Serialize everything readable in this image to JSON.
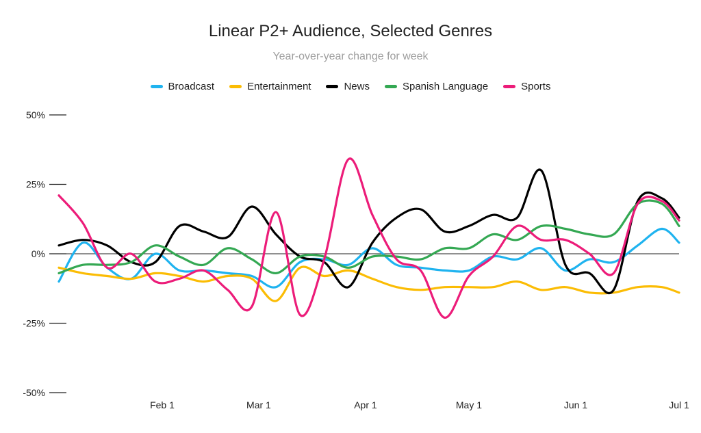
{
  "chart_data": {
    "type": "line",
    "title": "Linear P2+ Audience, Selected Genres",
    "subtitle": "Year-over-year change for week",
    "xlabel": "",
    "ylabel": "",
    "ylim": [
      -50,
      50
    ],
    "y_ticks": [
      50,
      25,
      0,
      -25,
      -50
    ],
    "y_tick_labels": [
      "50%",
      "25%",
      "0%",
      "-25%",
      "-50%"
    ],
    "x_ticks": [
      {
        "label": "Feb 1",
        "x": 31
      },
      {
        "label": "Mar 1",
        "x": 59
      },
      {
        "label": "Apr 1",
        "x": 90
      },
      {
        "label": "May 1",
        "x": 120
      },
      {
        "label": "Jun 1",
        "x": 151
      },
      {
        "label": "Jul 1",
        "x": 181
      }
    ],
    "xlim": [
      1,
      181
    ],
    "x_unit": "day of year (2021)",
    "legend_position": "top-center",
    "zero_line": true,
    "series": [
      {
        "name": "Broadcast",
        "color": "#1fb3ef",
        "x": [
          1,
          8,
          15,
          22,
          29,
          36,
          43,
          50,
          57,
          64,
          71,
          78,
          85,
          92,
          99,
          106,
          113,
          120,
          127,
          134,
          141,
          148,
          155,
          162,
          169,
          176,
          181
        ],
        "y": [
          -10,
          4,
          -5,
          -9,
          0,
          -6,
          -6,
          -7,
          -8,
          -12,
          -3,
          -2,
          -4,
          2,
          -4,
          -5,
          -6,
          -6,
          -1,
          -2,
          2,
          -6,
          -2,
          -3,
          3,
          9,
          4
        ]
      },
      {
        "name": "Entertainment",
        "color": "#fbbc04",
        "x": [
          1,
          8,
          15,
          22,
          29,
          36,
          43,
          50,
          57,
          64,
          71,
          78,
          85,
          92,
          99,
          106,
          113,
          120,
          127,
          134,
          141,
          148,
          155,
          162,
          169,
          176,
          181
        ],
        "y": [
          -5,
          -7,
          -8,
          -9,
          -7,
          -8,
          -10,
          -8,
          -9,
          -17,
          -5,
          -8,
          -6,
          -9,
          -12,
          -13,
          -12,
          -12,
          -12,
          -10,
          -13,
          -12,
          -14,
          -14,
          -12,
          -12,
          -14
        ]
      },
      {
        "name": "News",
        "color": "#000000",
        "x": [
          1,
          8,
          15,
          22,
          29,
          36,
          43,
          50,
          57,
          64,
          71,
          78,
          85,
          92,
          99,
          106,
          113,
          120,
          127,
          134,
          141,
          148,
          155,
          162,
          169,
          176,
          181
        ],
        "y": [
          3,
          5,
          3,
          -3,
          -3,
          10,
          8,
          6,
          17,
          7,
          -1,
          -3,
          -12,
          4,
          13,
          16,
          8,
          10,
          14,
          13,
          30,
          -4,
          -7,
          -13,
          19,
          20,
          13
        ]
      },
      {
        "name": "Spanish Language",
        "color": "#34a853",
        "x": [
          1,
          8,
          15,
          22,
          29,
          36,
          43,
          50,
          57,
          64,
          71,
          78,
          85,
          92,
          99,
          106,
          113,
          120,
          127,
          134,
          141,
          148,
          155,
          162,
          169,
          176,
          181
        ],
        "y": [
          -7,
          -4,
          -4,
          -3,
          3,
          -1,
          -4,
          2,
          -2,
          -7,
          -1,
          -1,
          -5,
          -1,
          -1,
          -2,
          2,
          2,
          7,
          5,
          10,
          9,
          7,
          7,
          18,
          18,
          10
        ]
      },
      {
        "name": "Sports",
        "color": "#ec1c79",
        "x": [
          1,
          8,
          15,
          22,
          29,
          36,
          43,
          50,
          57,
          64,
          71,
          78,
          85,
          92,
          99,
          106,
          113,
          120,
          127,
          134,
          141,
          148,
          155,
          162,
          169,
          176,
          181
        ],
        "y": [
          21,
          11,
          -5,
          0,
          -10,
          -9,
          -6,
          -13,
          -19,
          15,
          -22,
          -2,
          34,
          14,
          -2,
          -6,
          -23,
          -8,
          -1,
          10,
          5,
          5,
          0,
          -7,
          18,
          19,
          12
        ]
      }
    ]
  }
}
